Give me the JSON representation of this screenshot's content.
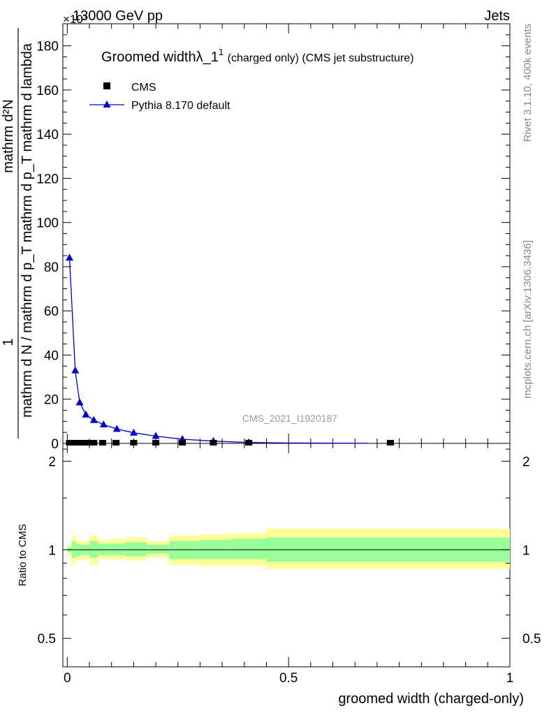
{
  "header": {
    "left": "13000 GeV pp",
    "right": "Jets",
    "exponent": "×10³"
  },
  "side_labels": {
    "rivet": "Rivet 3.1.10,  400k events",
    "mcplots": "mcplots.cern.ch [arXiv:1306.3436]"
  },
  "chart_data": [
    {
      "type": "line",
      "title": "Groomed widthλ_1",
      "title_sup": "1",
      "subtitle": "(charged only) (CMS jet substructure)",
      "watermark": "CMS_2021_I1920187",
      "ylabel_top": "1",
      "ylabel_den": "mathrm d N / mathrm d p_T mathrm d p_T mathrm d lambda",
      "ylabel_num": "mathrm d²N",
      "ylim": [
        0,
        190
      ],
      "xlim": [
        -0.01,
        1.0
      ],
      "yticks": [
        0,
        20,
        40,
        60,
        80,
        100,
        120,
        140,
        160,
        180
      ],
      "ytick_labels": [
        "0",
        "20",
        "40",
        "60",
        "80",
        "100",
        "120",
        "140",
        "160",
        "180"
      ],
      "legend": {
        "placement": "top-left",
        "entries": [
          {
            "name": "CMS",
            "marker": "square",
            "color": "#000000"
          },
          {
            "name": "Pythia 8.170 default",
            "marker": "triangle",
            "color": "#0000cc"
          }
        ]
      },
      "series": [
        {
          "name": "CMS",
          "color": "#000000",
          "x": [
            0.005,
            0.015,
            0.025,
            0.035,
            0.045,
            0.06,
            0.08,
            0.11,
            0.15,
            0.2,
            0.26,
            0.33,
            0.41,
            0.73
          ],
          "y": [
            0.3,
            0.3,
            0.3,
            0.3,
            0.3,
            0.3,
            0.3,
            0.3,
            0.3,
            0.3,
            0.3,
            0.3,
            0.3,
            0.3
          ]
        },
        {
          "name": "Pythia 8.170 default",
          "color": "#0000cc",
          "x": [
            0.005,
            0.018,
            0.028,
            0.042,
            0.06,
            0.082,
            0.112,
            0.15,
            0.2,
            0.26,
            0.33,
            0.41,
            0.5,
            0.6,
            0.68
          ],
          "y": [
            84,
            33,
            18.5,
            13,
            10.5,
            8.5,
            6.5,
            4.8,
            3.3,
            1.9,
            1.0,
            0.4,
            0.2,
            0.1,
            0.05
          ]
        }
      ]
    },
    {
      "type": "area",
      "ylabel": "Ratio to CMS",
      "xlabel": "groomed width (charged-only)",
      "xlim": [
        -0.01,
        1.0
      ],
      "ylim": [
        0.4,
        2.3
      ],
      "log_y": true,
      "yticks": [
        0.5,
        1,
        2
      ],
      "ytick_labels": [
        "0.5",
        "1",
        "2"
      ],
      "xticks": [
        0,
        0.5,
        1
      ],
      "xtick_labels": [
        "0",
        "0.5",
        "1"
      ],
      "bands": {
        "edges": [
          0,
          0.01,
          0.02,
          0.03,
          0.05,
          0.07,
          0.1,
          0.13,
          0.18,
          0.23,
          0.3,
          0.37,
          0.45,
          1.0
        ],
        "yellow_lo": [
          0.95,
          0.89,
          0.92,
          0.93,
          0.89,
          0.93,
          0.93,
          0.92,
          0.94,
          0.89,
          0.88,
          0.88,
          0.86
        ],
        "yellow_hi": [
          1.05,
          1.12,
          1.08,
          1.07,
          1.12,
          1.08,
          1.09,
          1.1,
          1.07,
          1.12,
          1.13,
          1.14,
          1.18
        ],
        "green_lo": [
          0.98,
          0.94,
          0.95,
          0.96,
          0.94,
          0.96,
          0.96,
          0.95,
          0.97,
          0.93,
          0.93,
          0.93,
          0.91
        ],
        "green_hi": [
          1.02,
          1.07,
          1.05,
          1.04,
          1.07,
          1.05,
          1.05,
          1.06,
          1.04,
          1.07,
          1.08,
          1.09,
          1.1
        ]
      },
      "reference": 1.0,
      "colors": {
        "yellow": "#ffff99",
        "green": "#99ff99"
      }
    }
  ]
}
